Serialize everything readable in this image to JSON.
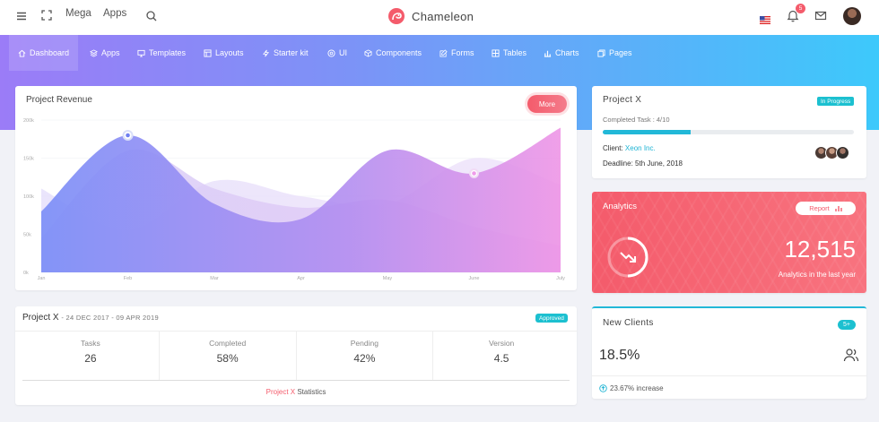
{
  "topbar": {
    "mega_label": "Mega",
    "apps_label": "Apps",
    "brand_name": "Chameleon",
    "notification_count": "5",
    "icons": [
      "menu-icon",
      "fullscreen-icon",
      "search-icon",
      "flag-us-icon",
      "bell-icon",
      "mail-icon"
    ]
  },
  "nav": {
    "items": [
      {
        "label": "Dashboard",
        "icon": "home-icon",
        "active": true
      },
      {
        "label": "Apps",
        "icon": "layers-icon"
      },
      {
        "label": "Templates",
        "icon": "monitor-icon"
      },
      {
        "label": "Layouts",
        "icon": "layout-icon"
      },
      {
        "label": "Starter kit",
        "icon": "zap-icon"
      },
      {
        "label": "UI",
        "icon": "aperture-icon"
      },
      {
        "label": "Components",
        "icon": "box-icon"
      },
      {
        "label": "Forms",
        "icon": "edit-icon"
      },
      {
        "label": "Tables",
        "icon": "grid-icon"
      },
      {
        "label": "Charts",
        "icon": "bar-chart-icon"
      },
      {
        "label": "Pages",
        "icon": "copy-icon"
      }
    ]
  },
  "revenue": {
    "title": "Project Revenue",
    "more_label": "More",
    "chart_data": {
      "type": "area",
      "x": [
        "Jan",
        "Feb",
        "Mar",
        "Apr",
        "May",
        "June",
        "July"
      ],
      "y_ticks": [
        "0k",
        "50k",
        "100k",
        "150k",
        "200k"
      ],
      "ylim": [
        0,
        200
      ],
      "series": [
        {
          "values": [
            80,
            180,
            90,
            70,
            160,
            130,
            190
          ]
        },
        {
          "values": [
            45,
            160,
            110,
            85,
            95,
            60,
            35
          ]
        },
        {
          "values": [
            110,
            55,
            120,
            100,
            90,
            150,
            115
          ]
        }
      ],
      "grid": true
    }
  },
  "project_x": {
    "title": "Project X",
    "status": "In Progress",
    "task_label": "Completed Task : 4/10",
    "progress": 0.35,
    "client_label": "Client:",
    "client_name": "Xeon Inc.",
    "deadline_label": "Deadline:",
    "deadline_value": "5th June, 2018"
  },
  "analytics": {
    "title": "Analytics",
    "report_label": "Report",
    "value": "12,515",
    "subtitle": "Analytics in the last year"
  },
  "new_clients": {
    "title": "New Clients",
    "badge": "5+",
    "value": "18.5%",
    "increase": "23.67% increase"
  },
  "project_stats": {
    "title": "Project X",
    "dates": "- 24 DEC 2017 - 09 APR 2019",
    "badge": "Approved",
    "stats": [
      {
        "label": "Tasks",
        "value": "26"
      },
      {
        "label": "Completed",
        "value": "58%"
      },
      {
        "label": "Pending",
        "value": "42%"
      },
      {
        "label": "Version",
        "value": "4.5"
      }
    ],
    "footer_highlight": "Project X",
    "footer_text": "Statistics"
  },
  "colors": {
    "accent_purple": "#9b7cf7",
    "accent_cyan": "#3dc9fb",
    "danger": "#f45b6b",
    "info": "#1cc0d0"
  }
}
